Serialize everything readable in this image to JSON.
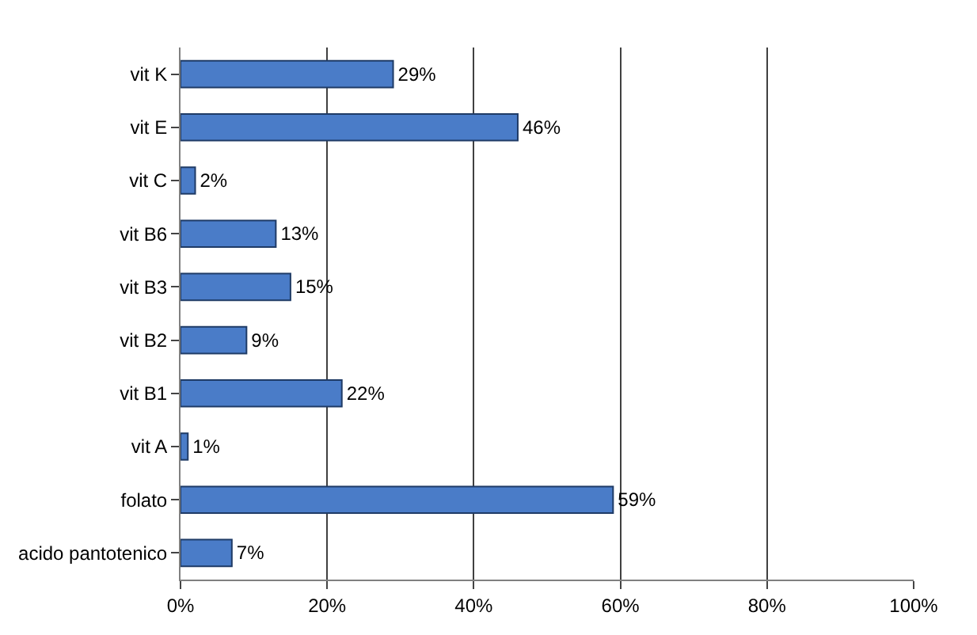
{
  "chart_data": {
    "type": "bar",
    "orientation": "horizontal",
    "categories": [
      "vit K",
      "vit E",
      "vit C",
      "vit B6",
      "vit B3",
      "vit B2",
      "vit B1",
      "vit A",
      "folato",
      "acido pantotenico"
    ],
    "values": [
      29,
      46,
      2,
      13,
      15,
      9,
      22,
      1,
      59,
      7
    ],
    "value_labels": [
      "29%",
      "46%",
      "2%",
      "13%",
      "15%",
      "9%",
      "22%",
      "1%",
      "59%",
      "7%"
    ],
    "color": "#4a7cc8",
    "xlim": [
      0,
      100
    ],
    "xticks": [
      {
        "value": 0,
        "label": "0%"
      },
      {
        "value": 20,
        "label": "20%"
      },
      {
        "value": 40,
        "label": "40%"
      },
      {
        "value": 60,
        "label": "60%"
      },
      {
        "value": 80,
        "label": "80%"
      },
      {
        "value": 100,
        "label": "100%"
      }
    ],
    "grid": "x"
  }
}
